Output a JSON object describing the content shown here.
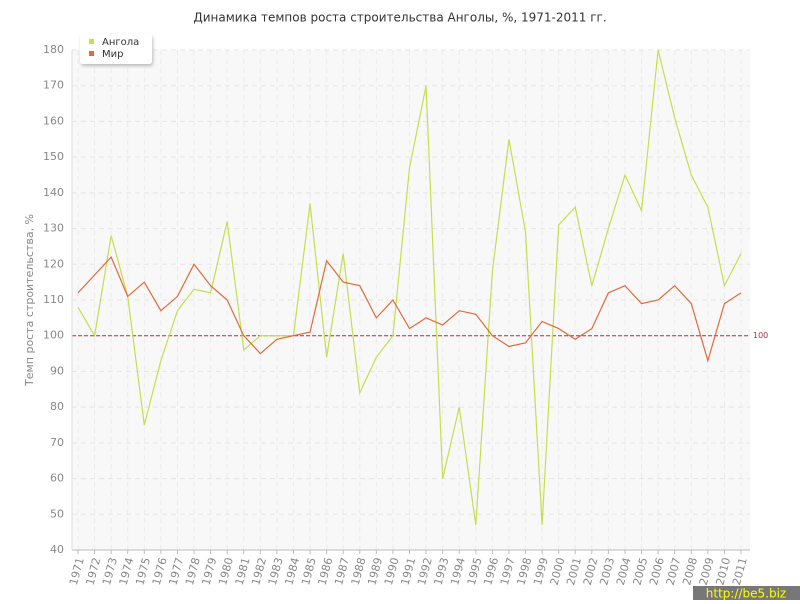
{
  "chart_data": {
    "type": "line",
    "title": "Динамика темпов роста строительства Анголы, %, 1971-2011 гг.",
    "y_label": "Темп роста строительства, %",
    "categories": [
      "1971",
      "1972",
      "1973",
      "1974",
      "1975",
      "1976",
      "1977",
      "1978",
      "1979",
      "1980",
      "1981",
      "1982",
      "1983",
      "1984",
      "1985",
      "1986",
      "1987",
      "1988",
      "1989",
      "1990",
      "1991",
      "1992",
      "1993",
      "1994",
      "1995",
      "1996",
      "1997",
      "1998",
      "1999",
      "2000",
      "2001",
      "2002",
      "2003",
      "2004",
      "2005",
      "2006",
      "2007",
      "2008",
      "2009",
      "2010",
      "2011"
    ],
    "series": [
      {
        "name": "Ангола",
        "color": "#c3df4f",
        "values": [
          108,
          100,
          128,
          111,
          75,
          93,
          107,
          113,
          112,
          132,
          96,
          100,
          100,
          100,
          137,
          94,
          123,
          84,
          94,
          100,
          147,
          170,
          60,
          80,
          47,
          118,
          155,
          129,
          47,
          131,
          136,
          114,
          130,
          145,
          135,
          180,
          161,
          145,
          136,
          114,
          123
        ]
      },
      {
        "name": "Мир",
        "color": "#e06a3c",
        "values": [
          112,
          117,
          122,
          111,
          115,
          107,
          111,
          120,
          114,
          110,
          100,
          95,
          99,
          100,
          101,
          121,
          115,
          114,
          105,
          110,
          102,
          105,
          103,
          107,
          106,
          100,
          97,
          98,
          104,
          102,
          99,
          102,
          112,
          114,
          109,
          110,
          114,
          109,
          93,
          109,
          112
        ]
      }
    ],
    "ylim": [
      40,
      180
    ],
    "yticks": [
      40,
      50,
      60,
      70,
      80,
      90,
      100,
      110,
      120,
      130,
      140,
      150,
      160,
      170,
      180
    ],
    "grid": true,
    "legend": "top-left",
    "reference_line": 100,
    "reference_color": "#a0364a",
    "watermark": "http://be5.biz"
  }
}
